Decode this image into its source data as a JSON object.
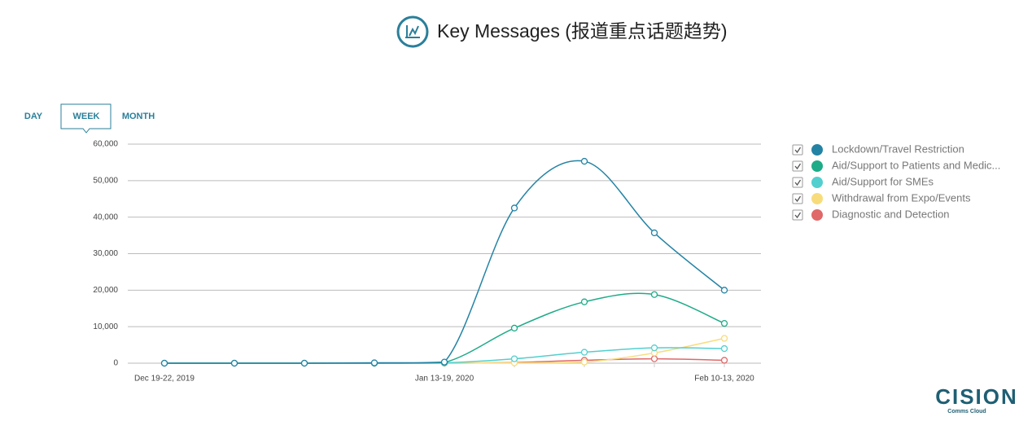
{
  "chart_data": {
    "type": "line",
    "title": "Key Messages (报道重点话题趋势)",
    "categories": [
      "Dec 19-22, 2019",
      null,
      null,
      null,
      "Jan 13-19, 2020",
      null,
      null,
      null,
      "Feb 10-13, 2020"
    ],
    "series": [
      {
        "name": "Lockdown/Travel Restriction",
        "color": "#2383a5",
        "values": [
          0,
          0,
          0,
          100,
          300,
          42500,
          55300,
          35700,
          20000
        ]
      },
      {
        "name": "Aid/Support to Patients and Medic...",
        "color": "#1eab88",
        "values": [
          0,
          0,
          0,
          0,
          200,
          9600,
          16800,
          18800,
          10900
        ]
      },
      {
        "name": "Aid/Support for SMEs",
        "color": "#53cfcf",
        "values": [
          0,
          0,
          0,
          0,
          100,
          1200,
          3000,
          4200,
          4000
        ]
      },
      {
        "name": "Withdrawal from Expo/Events",
        "color": "#f8dc7c",
        "values": [
          0,
          0,
          0,
          0,
          0,
          100,
          300,
          2800,
          6800
        ]
      },
      {
        "name": "Diagnostic and Detection",
        "color": "#e06868",
        "values": [
          0,
          0,
          0,
          0,
          0,
          200,
          800,
          1200,
          800
        ]
      }
    ],
    "ylim": [
      0,
      60000
    ],
    "yticks": [
      0,
      {
        "value": 10000,
        "label": "10,000"
      },
      {
        "value": 20000,
        "label": "20,000"
      },
      {
        "value": 30000,
        "label": "30,000"
      },
      {
        "value": 40000,
        "label": "40,000"
      },
      {
        "value": 50000,
        "label": "50,000"
      },
      {
        "value": 60000,
        "label": "60,000"
      }
    ],
    "grid": true,
    "legend": "right"
  },
  "tabs": [
    "DAY",
    "WEEK",
    "MONTH"
  ],
  "brand": {
    "name": "CISION",
    "tagline": "Comms Cloud"
  }
}
